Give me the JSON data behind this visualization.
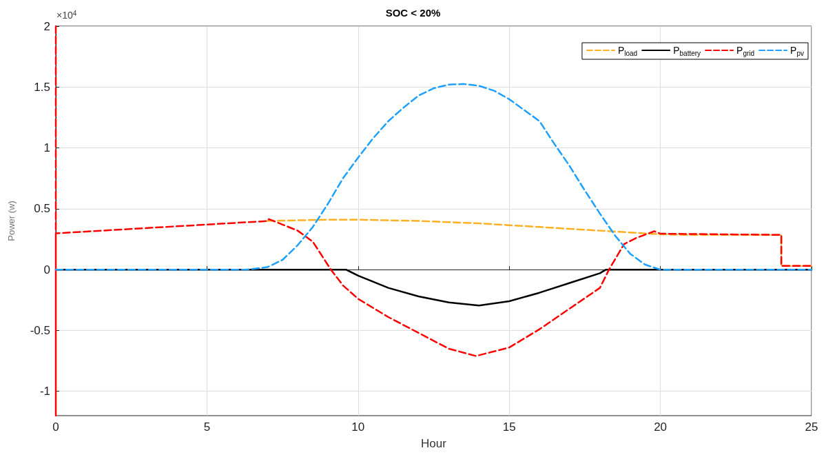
{
  "chart_data": {
    "type": "line",
    "title": "SOC < 20%",
    "xlabel": "Hour",
    "ylabel": "Power (w)",
    "annotations": [
      "×10$^{4}$"
    ],
    "xlim": [
      0,
      25
    ],
    "xticks": [
      0,
      5,
      10,
      15,
      20,
      25
    ],
    "ylim": [
      -1.2,
      2
    ],
    "yticks": [
      -1,
      -0.5,
      0,
      0.5,
      1,
      1.5,
      2
    ],
    "grid": true,
    "legend": "top right",
    "marker": "none",
    "series": [
      {
        "name": "P$_{load}$",
        "color": "#ffb020",
        "line_style": "dashed",
        "x": [
          7,
          8,
          9,
          10,
          11,
          12,
          13,
          14,
          15,
          16,
          17,
          18,
          19,
          20,
          21,
          22,
          23,
          24,
          24,
          25
        ],
        "values": [
          0.4,
          0.405,
          0.41,
          0.41,
          0.405,
          0.4,
          0.39,
          0.38,
          0.365,
          0.35,
          0.335,
          0.32,
          0.305,
          0.29,
          0.285,
          0.285,
          0.285,
          0.285,
          0.03,
          0.03
        ]
      },
      {
        "name": "P$_{battery}$",
        "color": "#000000",
        "line_style": "solid",
        "x": [
          0,
          9.6,
          10,
          11,
          12,
          13,
          14,
          15,
          16,
          17,
          18,
          18.2,
          25
        ],
        "values": [
          0,
          0,
          -0.05,
          -0.15,
          -0.22,
          -0.27,
          -0.295,
          -0.26,
          -0.19,
          -0.11,
          -0.03,
          0,
          0
        ]
      },
      {
        "name": "P$_{grid}$",
        "color": "#ff0000",
        "line_style": "dashed",
        "x": [
          0,
          0,
          0,
          7,
          7.05,
          7.5,
          8,
          8.5,
          9.1,
          9.5,
          10,
          11,
          12,
          13,
          13.9,
          15,
          16,
          17,
          18,
          18.3,
          18.8,
          19.2,
          19.8,
          20,
          24,
          24,
          25
        ],
        "values": [
          2,
          -1.2,
          0.298,
          0.399,
          0.415,
          0.37,
          0.32,
          0.23,
          0,
          -0.13,
          -0.24,
          -0.39,
          -0.52,
          -0.65,
          -0.71,
          -0.64,
          -0.49,
          -0.32,
          -0.15,
          0,
          0.21,
          0.26,
          0.315,
          0.295,
          0.285,
          0.03,
          0.03
        ]
      },
      {
        "name": "P$_{pv}$",
        "color": "#1ea0ff",
        "line_style": "dashed",
        "x": [
          0,
          6.3,
          7,
          7.5,
          8,
          8.5,
          9,
          9.5,
          10,
          10.5,
          11,
          11.5,
          12,
          12.5,
          13,
          13.5,
          14,
          14.5,
          15,
          15.5,
          16,
          16.5,
          17,
          17.5,
          18,
          18.5,
          19,
          19.5,
          20,
          25
        ],
        "values": [
          0,
          0,
          0.02,
          0.08,
          0.2,
          0.35,
          0.54,
          0.75,
          0.92,
          1.08,
          1.22,
          1.33,
          1.43,
          1.49,
          1.52,
          1.525,
          1.51,
          1.47,
          1.4,
          1.31,
          1.22,
          1.03,
          0.85,
          0.65,
          0.46,
          0.28,
          0.13,
          0.04,
          0,
          0
        ]
      }
    ]
  }
}
